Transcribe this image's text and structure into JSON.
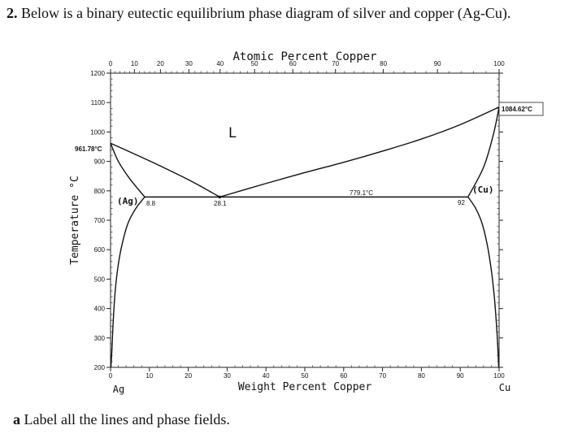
{
  "question": {
    "number": "2.",
    "text": "Below is a binary eutectic equilibrium phase diagram of silver and copper (Ag-Cu)."
  },
  "sub_question": {
    "letter": "a",
    "text": "Label all the lines and phase fields."
  },
  "chart_data": {
    "type": "phase-diagram",
    "top_axis_label": "Atomic Percent Copper",
    "top_ticks": [
      0,
      10,
      20,
      30,
      40,
      50,
      60,
      70,
      80,
      90,
      100
    ],
    "bottom_axis_label": "Weight Percent Copper",
    "bottom_ticks": [
      0,
      10,
      20,
      30,
      40,
      50,
      60,
      70,
      80,
      90,
      100
    ],
    "ylabel": "Temperature °C",
    "y_ticks": [
      1200,
      1100,
      1000,
      900,
      800,
      700,
      600,
      500,
      400,
      300,
      200
    ],
    "xlim": [
      0,
      100
    ],
    "ylim": [
      200,
      1200
    ],
    "left_element": "Ag",
    "right_element": "Cu",
    "annotations": {
      "ag_melting": "961.78°C",
      "cu_melting": "1084.62°C",
      "eutectic_temp": "779.1°C",
      "liquid": "L",
      "alpha_phase": "(Ag)",
      "beta_phase": "(Cu)",
      "ag_solubility": "8.8",
      "eutectic_comp": "28.1",
      "cu_solubility": "92"
    },
    "curves": {
      "liquidus_left": [
        [
          0,
          961.78
        ],
        [
          10,
          902
        ],
        [
          20,
          838
        ],
        [
          28.1,
          779.1
        ]
      ],
      "liquidus_right": [
        [
          28.1,
          779.1
        ],
        [
          40,
          825
        ],
        [
          50,
          862
        ],
        [
          60,
          897
        ],
        [
          70,
          935
        ],
        [
          80,
          976
        ],
        [
          90,
          1025
        ],
        [
          100,
          1084.62
        ]
      ],
      "solidus_left": [
        [
          0,
          961.78
        ],
        [
          2,
          900
        ],
        [
          5,
          840
        ],
        [
          8.8,
          779.1
        ]
      ],
      "solidus_right": [
        [
          92,
          779.1
        ],
        [
          96,
          880
        ],
        [
          98.5,
          990
        ],
        [
          100,
          1084.62
        ]
      ],
      "eutectic_line": [
        [
          8.8,
          779.1
        ],
        [
          92,
          779.1
        ]
      ],
      "solvus_left": [
        [
          8.8,
          779.1
        ],
        [
          6.5,
          740
        ],
        [
          4.5,
          690
        ],
        [
          3,
          620
        ],
        [
          2,
          550
        ],
        [
          1.2,
          460
        ],
        [
          0.7,
          360
        ],
        [
          0.35,
          260
        ],
        [
          0.1,
          200
        ]
      ],
      "solvus_right": [
        [
          92,
          779.1
        ],
        [
          94,
          740
        ],
        [
          95.6,
          690
        ],
        [
          96.9,
          620
        ],
        [
          97.9,
          540
        ],
        [
          98.7,
          450
        ],
        [
          99.3,
          350
        ],
        [
          99.7,
          260
        ],
        [
          99.9,
          200
        ]
      ]
    }
  }
}
